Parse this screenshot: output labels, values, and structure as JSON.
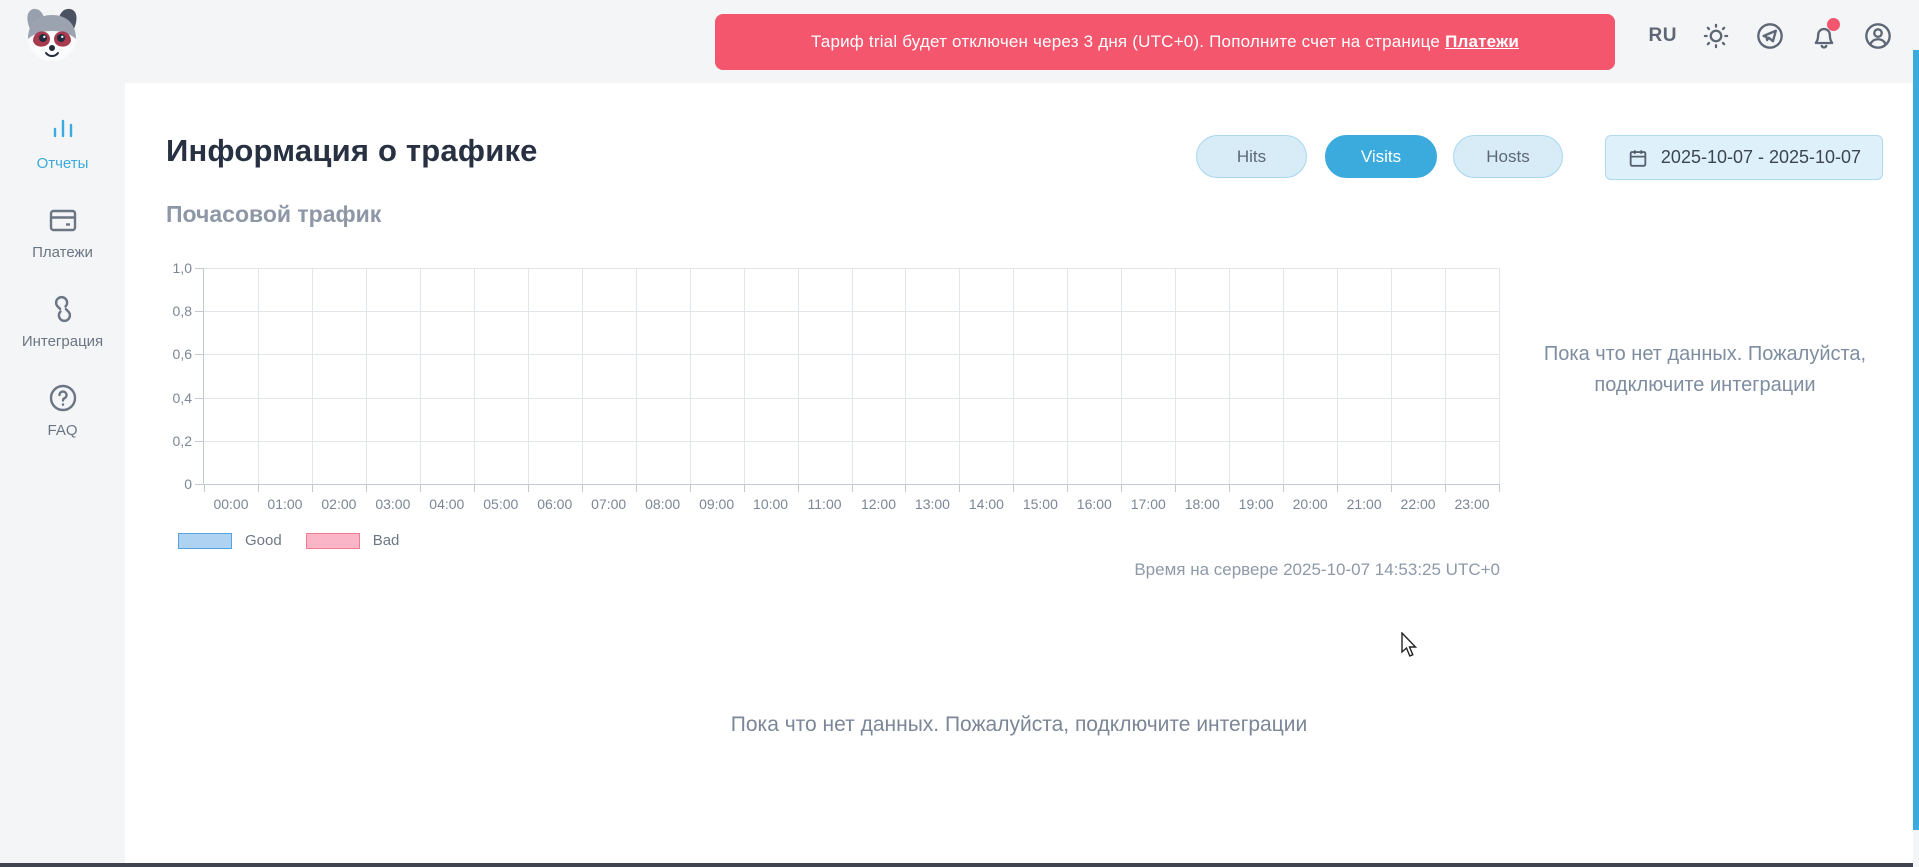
{
  "header": {
    "language": "RU",
    "icons": [
      "theme-sun",
      "telegram",
      "notifications-bell",
      "profile"
    ],
    "notification_dot": true
  },
  "banner": {
    "text": "Тариф trial будет отключен через 3 дня (UTC+0). Пополните счет на странице",
    "link_label": "Платежи"
  },
  "sidebar": {
    "items": [
      {
        "label": "Отчеты",
        "icon": "bar-chart",
        "active": true
      },
      {
        "label": "Платежи",
        "icon": "credit-card",
        "active": false
      },
      {
        "label": "Интеграция",
        "icon": "integration-link",
        "active": false
      },
      {
        "label": "FAQ",
        "icon": "question-circle",
        "active": false
      }
    ]
  },
  "page": {
    "title": "Информация о трафике",
    "section_title": "Почасовой трафик"
  },
  "toolbar": {
    "tabs": [
      {
        "label": "Hits",
        "active": false
      },
      {
        "label": "Visits",
        "active": true
      },
      {
        "label": "Hosts",
        "active": false
      }
    ],
    "date_range": "2025-10-07 - 2025-10-07"
  },
  "chart": {
    "y_labels": [
      "1,0",
      "0,8",
      "0,6",
      "0,4",
      "0,2",
      "0"
    ],
    "x_labels": [
      "00:00",
      "01:00",
      "02:00",
      "03:00",
      "04:00",
      "05:00",
      "06:00",
      "07:00",
      "08:00",
      "09:00",
      "10:00",
      "11:00",
      "12:00",
      "13:00",
      "14:00",
      "15:00",
      "16:00",
      "17:00",
      "18:00",
      "19:00",
      "20:00",
      "21:00",
      "22:00",
      "23:00"
    ],
    "legend": [
      {
        "label": "Good",
        "fill": "#aed3f2",
        "border": "#57a4dd"
      },
      {
        "label": "Bad",
        "fill": "#fab6c6",
        "border": "#f27a93"
      }
    ]
  },
  "chart_data": {
    "type": "bar",
    "title": "Почасовой трафик",
    "categories": [
      "00:00",
      "01:00",
      "02:00",
      "03:00",
      "04:00",
      "05:00",
      "06:00",
      "07:00",
      "08:00",
      "09:00",
      "10:00",
      "11:00",
      "12:00",
      "13:00",
      "14:00",
      "15:00",
      "16:00",
      "17:00",
      "18:00",
      "19:00",
      "20:00",
      "21:00",
      "22:00",
      "23:00"
    ],
    "series": [
      {
        "name": "Good",
        "values": []
      },
      {
        "name": "Bad",
        "values": []
      }
    ],
    "ylim": [
      0,
      1
    ],
    "grid": true,
    "legend_position": "bottom-left",
    "empty": true
  },
  "messages": {
    "no_data_side": "Пока что нет данных. Пожалуйста, подключите интеграции",
    "no_data_bottom": "Пока что нет данных. Пожалуйста, подключите интеграции",
    "server_time": "Время на сервере 2025-10-07 14:53:25 UTC+0"
  },
  "colors": {
    "accent": "#3aabdc",
    "banner": "#f4566e",
    "good_fill": "#aed3f2",
    "good_border": "#57a4dd",
    "bad_fill": "#fab6c6",
    "bad_border": "#f27a93",
    "background": "#f4f5f7",
    "panel": "#ffffff"
  }
}
